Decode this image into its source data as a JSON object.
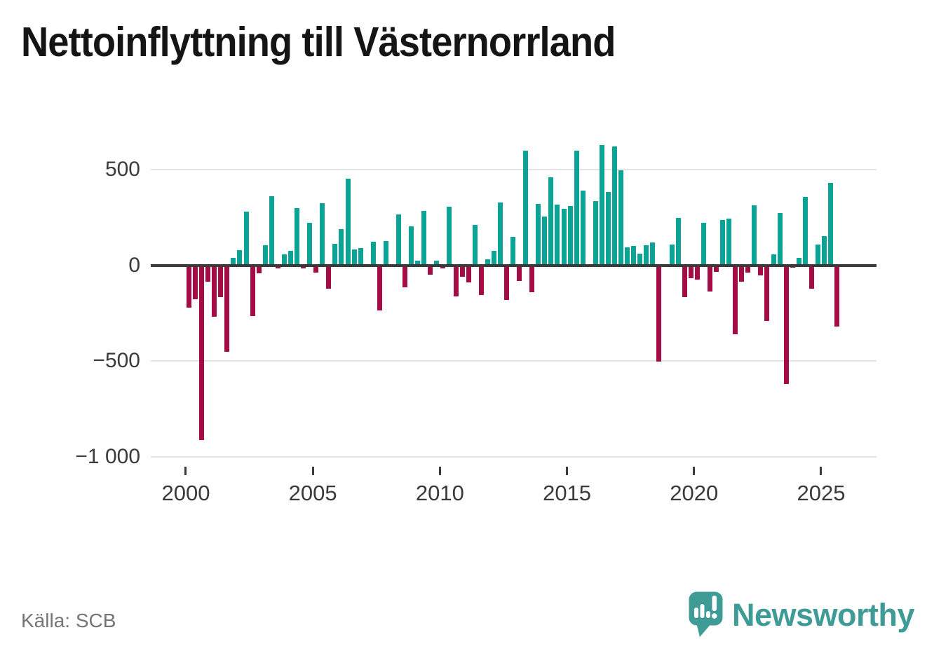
{
  "header": {
    "title": "Nettoinflyttning till Västernorrland"
  },
  "footer": {
    "source_label": "Källa: SCB",
    "logo_text": "Newsworthy"
  },
  "colors": {
    "positive": "#0aa396",
    "negative": "#a50b45",
    "zero_axis": "#3b3b3b",
    "gridline": "#e3e3e3",
    "axis_text": "#3a3a3a",
    "source_text": "#757575",
    "logo_teal": "#3f9b96",
    "title_text": "#151515"
  },
  "chart_data": {
    "type": "bar",
    "title": "Nettoinflyttning till Västernorrland",
    "xlabel": "",
    "ylabel": "",
    "frequency": "quarterly",
    "start_period": "2000 Q1",
    "end_period": "2025 Q3",
    "ylim": [
      -1030,
      655
    ],
    "grid": "horizontal",
    "legend": "none",
    "y_ticks": [
      500,
      0,
      -500,
      -1000
    ],
    "y_tick_labels": [
      "500",
      "0",
      "−500",
      "−1 000"
    ],
    "x_tick_years": [
      2000,
      2005,
      2010,
      2015,
      2020,
      2025
    ],
    "x_tick_labels": [
      "2000",
      "2005",
      "2010",
      "2015",
      "2020",
      "2025"
    ],
    "positive_color": "#0aa396",
    "negative_color": "#a50b45",
    "values": [
      -221,
      -176,
      -915,
      -86,
      -270,
      -166,
      -451,
      37,
      80,
      280,
      -265,
      -43,
      104,
      360,
      -18,
      55,
      76,
      300,
      -18,
      222,
      -40,
      326,
      -122,
      110,
      188,
      454,
      82,
      91,
      0,
      122,
      -235,
      126,
      0,
      267,
      -116,
      204,
      24,
      283,
      -49,
      24,
      -16,
      305,
      -162,
      -59,
      -91,
      210,
      -155,
      30,
      76,
      329,
      -180,
      150,
      -83,
      598,
      -140,
      320,
      256,
      461,
      317,
      296,
      308,
      600,
      389,
      0,
      334,
      628,
      383,
      622,
      496,
      95,
      102,
      61,
      106,
      120,
      -504,
      -10,
      108,
      247,
      -165,
      -67,
      -76,
      220,
      -137,
      -34,
      238,
      244,
      -360,
      -85,
      -37,
      313,
      -52,
      -293,
      55,
      274,
      -622,
      -12,
      39,
      357,
      -124,
      107,
      152,
      430,
      -320
    ]
  }
}
